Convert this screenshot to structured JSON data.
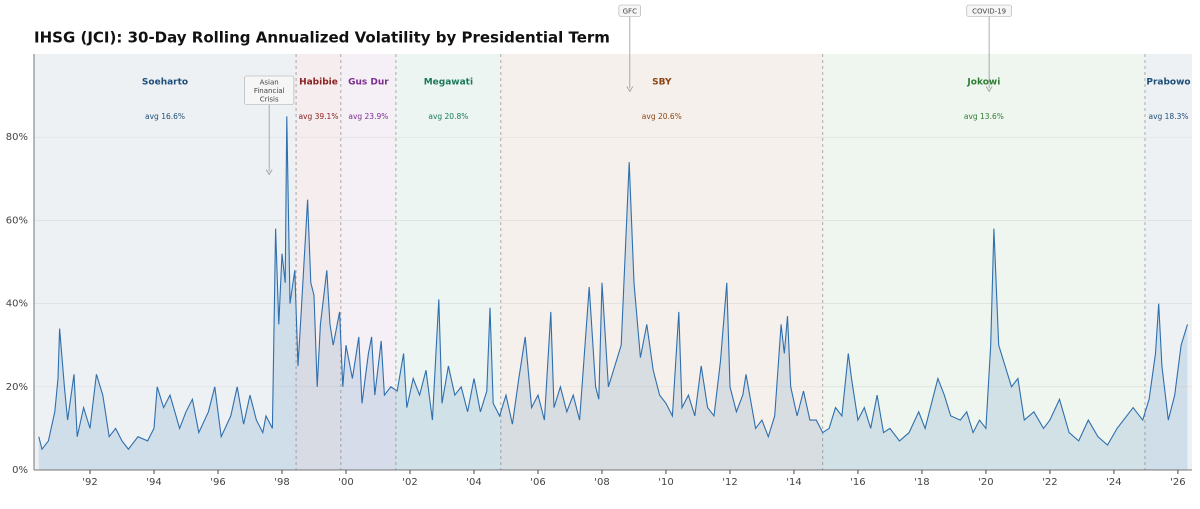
{
  "chart_data": {
    "type": "line",
    "title": "IHSG (JCI): 30-Day Rolling Annualized Volatility by Presidential Term",
    "xlim": [
      1990.25,
      2026.44
    ],
    "ylim": [
      0,
      100
    ],
    "xticks": [
      {
        "value": 1992,
        "label": "'92"
      },
      {
        "value": 1994,
        "label": "'94"
      },
      {
        "value": 1996,
        "label": "'96"
      },
      {
        "value": 1998,
        "label": "'98"
      },
      {
        "value": 2000,
        "label": "'00"
      },
      {
        "value": 2002,
        "label": "'02"
      },
      {
        "value": 2004,
        "label": "'04"
      },
      {
        "value": 2006,
        "label": "'06"
      },
      {
        "value": 2008,
        "label": "'08"
      },
      {
        "value": 2010,
        "label": "'10"
      },
      {
        "value": 2012,
        "label": "'12"
      },
      {
        "value": 2014,
        "label": "'14"
      },
      {
        "value": 2016,
        "label": "'16"
      },
      {
        "value": 2018,
        "label": "'18"
      },
      {
        "value": 2020,
        "label": "'20"
      },
      {
        "value": 2022,
        "label": "'22"
      },
      {
        "value": 2024,
        "label": "'24"
      },
      {
        "value": 2026,
        "label": "'26"
      }
    ],
    "yticks": [
      {
        "value": 0,
        "label": "0%"
      },
      {
        "value": 20,
        "label": "20%"
      },
      {
        "value": 40,
        "label": "40%"
      },
      {
        "value": 60,
        "label": "60%"
      },
      {
        "value": 80,
        "label": "80%"
      }
    ],
    "grid": true,
    "color": "#2f6fad",
    "terms": [
      {
        "name": "Soeharto",
        "start": 1990.25,
        "end": 1998.44,
        "color": "#1f4e79",
        "avg_label": "avg 16.6%"
      },
      {
        "name": "Habibie",
        "start": 1998.44,
        "end": 1999.84,
        "color": "#8b2020",
        "avg_label": "avg 39.1%"
      },
      {
        "name": "Gus Dur",
        "start": 1999.84,
        "end": 2001.56,
        "color": "#7b2d8e",
        "avg_label": "avg 23.9%"
      },
      {
        "name": "Megawati",
        "start": 2001.56,
        "end": 2004.84,
        "color": "#1a7a5a",
        "avg_label": "avg 20.8%"
      },
      {
        "name": "SBY",
        "start": 2004.84,
        "end": 2014.9,
        "color": "#8b4513",
        "avg_label": "avg 20.6%"
      },
      {
        "name": "Jokowi",
        "start": 2014.9,
        "end": 2024.97,
        "color": "#2e7d32",
        "avg_label": "avg 13.6%"
      },
      {
        "name": "Prabowo",
        "start": 2024.97,
        "end": 2026.44,
        "color": "#1f4e79",
        "avg_label": "avg 18.3%"
      }
    ],
    "annotations": [
      {
        "lines": [
          "Asian",
          "Financial",
          "Crisis"
        ],
        "x": 1997.6,
        "y": 71
      },
      {
        "lines": [
          "GFC"
        ],
        "x": 2008.87,
        "y": 91
      },
      {
        "lines": [
          "COVID-19"
        ],
        "x": 2020.1,
        "y": 91
      }
    ],
    "x": [
      1990.4,
      1990.5,
      1990.7,
      1990.9,
      1991.0,
      1991.05,
      1991.2,
      1991.3,
      1991.5,
      1991.6,
      1991.8,
      1992.0,
      1992.2,
      1992.4,
      1992.6,
      1992.8,
      1993.0,
      1993.2,
      1993.5,
      1993.8,
      1994.0,
      1994.1,
      1994.3,
      1994.5,
      1994.8,
      1995.0,
      1995.2,
      1995.4,
      1995.7,
      1995.9,
      1996.1,
      1996.4,
      1996.6,
      1996.8,
      1997.0,
      1997.2,
      1997.4,
      1997.5,
      1997.7,
      1997.8,
      1997.9,
      1998.0,
      1998.1,
      1998.15,
      1998.25,
      1998.4,
      1998.5,
      1998.6,
      1998.8,
      1998.9,
      1999.0,
      1999.1,
      1999.2,
      1999.4,
      1999.5,
      1999.6,
      1999.8,
      1999.9,
      2000.0,
      2000.2,
      2000.4,
      2000.5,
      2000.7,
      2000.8,
      2000.9,
      2001.1,
      2001.2,
      2001.4,
      2001.6,
      2001.8,
      2001.9,
      2002.1,
      2002.3,
      2002.5,
      2002.7,
      2002.9,
      2003.0,
      2003.2,
      2003.4,
      2003.6,
      2003.8,
      2004.0,
      2004.2,
      2004.4,
      2004.5,
      2004.6,
      2004.8,
      2005.0,
      2005.2,
      2005.4,
      2005.6,
      2005.8,
      2006.0,
      2006.2,
      2006.4,
      2006.5,
      2006.7,
      2006.9,
      2007.1,
      2007.3,
      2007.6,
      2007.8,
      2007.9,
      2008.0,
      2008.2,
      2008.4,
      2008.6,
      2008.85,
      2009.0,
      2009.2,
      2009.4,
      2009.6,
      2009.8,
      2010.0,
      2010.2,
      2010.4,
      2010.5,
      2010.7,
      2010.9,
      2011.1,
      2011.3,
      2011.5,
      2011.7,
      2011.9,
      2012.0,
      2012.2,
      2012.4,
      2012.5,
      2012.8,
      2013.0,
      2013.2,
      2013.4,
      2013.6,
      2013.7,
      2013.8,
      2013.9,
      2014.1,
      2014.3,
      2014.5,
      2014.7,
      2014.9,
      2015.1,
      2015.3,
      2015.5,
      2015.7,
      2015.8,
      2016.0,
      2016.2,
      2016.4,
      2016.6,
      2016.8,
      2017.0,
      2017.3,
      2017.6,
      2017.9,
      2018.1,
      2018.3,
      2018.5,
      2018.7,
      2018.9,
      2019.2,
      2019.4,
      2019.6,
      2019.8,
      2020.0,
      2020.15,
      2020.25,
      2020.4,
      2020.6,
      2020.8,
      2021.0,
      2021.2,
      2021.5,
      2021.8,
      2022.0,
      2022.3,
      2022.6,
      2022.9,
      2023.2,
      2023.5,
      2023.8,
      2024.1,
      2024.4,
      2024.6,
      2024.9,
      2025.1,
      2025.3,
      2025.4,
      2025.5,
      2025.7,
      2025.9,
      2026.1,
      2026.3
    ],
    "values": [
      8,
      5,
      7,
      14,
      22,
      34,
      20,
      12,
      23,
      8,
      15,
      10,
      23,
      18,
      8,
      10,
      7,
      5,
      8,
      7,
      10,
      20,
      15,
      18,
      10,
      14,
      17,
      9,
      14,
      20,
      8,
      13,
      20,
      11,
      18,
      12,
      9,
      13,
      10,
      58,
      35,
      52,
      45,
      85,
      40,
      48,
      25,
      38,
      65,
      45,
      42,
      20,
      35,
      48,
      35,
      30,
      38,
      20,
      30,
      22,
      32,
      16,
      28,
      32,
      18,
      31,
      18,
      20,
      19,
      28,
      15,
      22,
      18,
      24,
      12,
      41,
      16,
      25,
      18,
      20,
      14,
      22,
      14,
      19,
      39,
      16,
      13,
      18,
      11,
      22,
      32,
      15,
      18,
      12,
      38,
      15,
      20,
      14,
      18,
      12,
      44,
      20,
      17,
      45,
      20,
      25,
      30,
      74,
      45,
      27,
      35,
      24,
      18,
      16,
      13,
      38,
      15,
      18,
      13,
      25,
      15,
      13,
      26,
      45,
      20,
      14,
      18,
      23,
      10,
      12,
      8,
      13,
      35,
      28,
      37,
      20,
      13,
      19,
      12,
      12,
      9,
      10,
      15,
      13,
      28,
      22,
      12,
      15,
      10,
      18,
      9,
      10,
      7,
      9,
      14,
      10,
      16,
      22,
      18,
      13,
      12,
      14,
      9,
      12,
      10,
      30,
      58,
      30,
      25,
      20,
      22,
      12,
      14,
      10,
      12,
      17,
      9,
      7,
      12,
      8,
      6,
      10,
      13,
      15,
      12,
      17,
      28,
      40,
      25,
      12,
      18,
      30,
      35
    ]
  }
}
